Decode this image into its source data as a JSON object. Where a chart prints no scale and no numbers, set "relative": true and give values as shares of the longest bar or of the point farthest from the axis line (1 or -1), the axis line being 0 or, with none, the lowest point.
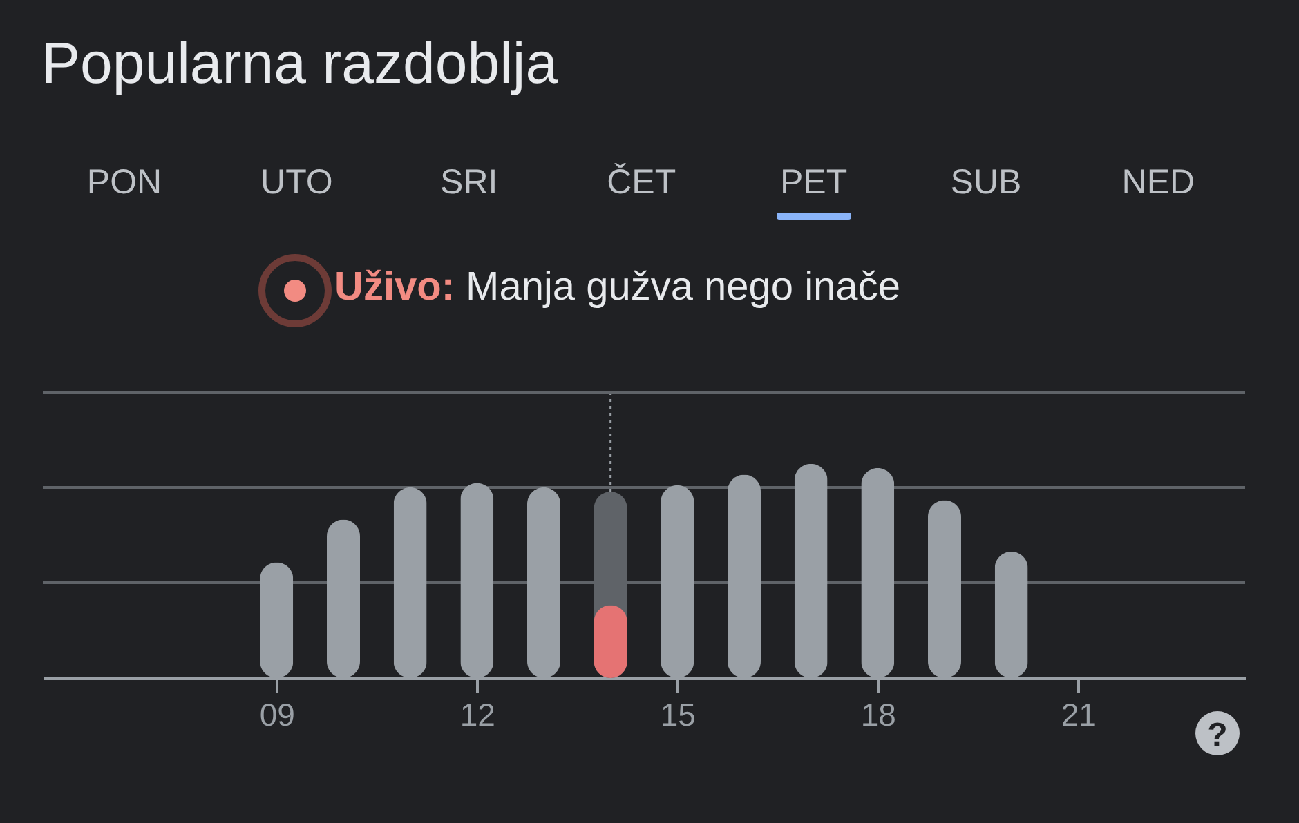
{
  "chart_data": {
    "type": "bar",
    "title": "Popularna razdoblja",
    "annotations": [
      "PON",
      "UTO",
      "SRI",
      "ČET",
      "PET",
      "SUB",
      "NED",
      "Uživo:",
      "Manja gužva nego inače",
      "?"
    ],
    "x": [
      9,
      10,
      11,
      12,
      13,
      14,
      15,
      16,
      17,
      18,
      19,
      20
    ],
    "series": [
      {
        "colors": [
          "#9aa0a6",
          "#9aa0a6",
          "#9aa0a6",
          "#9aa0a6",
          "#9aa0a6",
          "#5f6368",
          "#9aa0a6",
          "#9aa0a6",
          "#9aa0a6",
          "#9aa0a6",
          "#9aa0a6",
          "#9aa0a6"
        ],
        "values": [
          0.54,
          0.74,
          0.89,
          0.91,
          0.89,
          0.87,
          0.9,
          0.95,
          1,
          0.98,
          0.83,
          0.59
        ]
      },
      {
        "color": "#e57373",
        "values": [
          null,
          null,
          null,
          null,
          null,
          0.34,
          null,
          null,
          null,
          null,
          null,
          null
        ]
      }
    ],
    "relative": true,
    "xlim": [
      5.5,
      23.5
    ],
    "xticks": [
      {
        "value": 9,
        "label": "09"
      },
      {
        "value": 12,
        "label": "12"
      },
      {
        "value": 15,
        "label": "15"
      },
      {
        "value": 18,
        "label": "18"
      },
      {
        "value": 21,
        "label": "21"
      }
    ],
    "ref_lines": [
      {
        "axis": "x",
        "value": 14,
        "label": null,
        "line_style": "dotted",
        "color": "#9aa0a6"
      },
      {
        "axis": "y",
        "value": 0.445,
        "label": null,
        "color": "#5f6368"
      },
      {
        "axis": "y",
        "value": 0.89,
        "label": null,
        "color": "#5f6368"
      },
      {
        "axis": "y",
        "value": 1.335,
        "label": null,
        "color": "#5f6368"
      }
    ]
  }
}
